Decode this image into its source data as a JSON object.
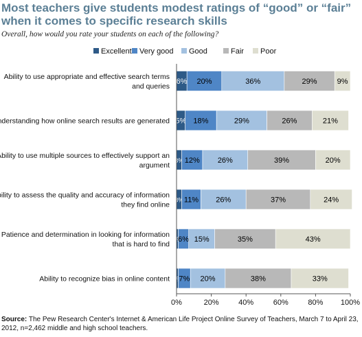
{
  "title": "Most teachers give students modest ratings of “good” or “fair” when it comes to specific research skills",
  "subtitle": "Overall, how would you rate your students on each of the following?",
  "source_label": "Source:",
  "source_text": "The Pew Research Center's Internet & American Life Project Online Survey of Teachers, March 7 to April 23, 2012, n=2,462 middle and high school teachers.",
  "chart_data": {
    "type": "bar",
    "orientation": "horizontal",
    "stacked": true,
    "categories": [
      [
        "Ability to use appropriate and effective search terms",
        "and queries"
      ],
      [
        "Understanding how online search results are generated"
      ],
      [
        "Ability to use multiple sources to effectively support an",
        "argument"
      ],
      [
        "Ability to assess the quality and accuracy of information",
        "they find online"
      ],
      [
        "Patience and determination in looking for information",
        "that is hard to find"
      ],
      [
        "Ability to recognize bias in online content"
      ]
    ],
    "series": [
      {
        "name": "Excellent",
        "color": "#2e5a87",
        "values": [
          6,
          5,
          3,
          3,
          1,
          1
        ]
      },
      {
        "name": "Very good",
        "color": "#4f86c6",
        "values": [
          20,
          18,
          12,
          11,
          6,
          7
        ]
      },
      {
        "name": "Good",
        "color": "#a3c1e0",
        "values": [
          36,
          29,
          26,
          26,
          15,
          20
        ]
      },
      {
        "name": "Fair",
        "color": "#b8b8b8",
        "values": [
          29,
          26,
          39,
          37,
          35,
          38
        ]
      },
      {
        "name": "Poor",
        "color": "#deded0",
        "values": [
          9,
          21,
          20,
          24,
          43,
          33
        ]
      }
    ],
    "label_colors": [
      "#ffffff",
      "#000000",
      "#000000",
      "#000000",
      "#000000"
    ],
    "data_labels": [
      [
        "6%",
        "20%",
        "36%",
        "29%",
        "9%"
      ],
      [
        "5%",
        "18%",
        "29%",
        "26%",
        "21%"
      ],
      [
        "3%",
        "12%",
        "26%",
        "39%",
        "20%"
      ],
      [
        "3%",
        "11%",
        "26%",
        "37%",
        "24%"
      ],
      [
        "1%",
        "6%",
        "15%",
        "35%",
        "43%"
      ],
      [
        "1%",
        "7%",
        "20%",
        "38%",
        "33%"
      ]
    ],
    "xlim": [
      0,
      100
    ],
    "xticks": [
      0,
      20,
      40,
      60,
      80,
      100
    ],
    "xtick_labels": [
      "0%",
      "20%",
      "40%",
      "60%",
      "80%",
      "100%"
    ],
    "legend_position": "top"
  }
}
